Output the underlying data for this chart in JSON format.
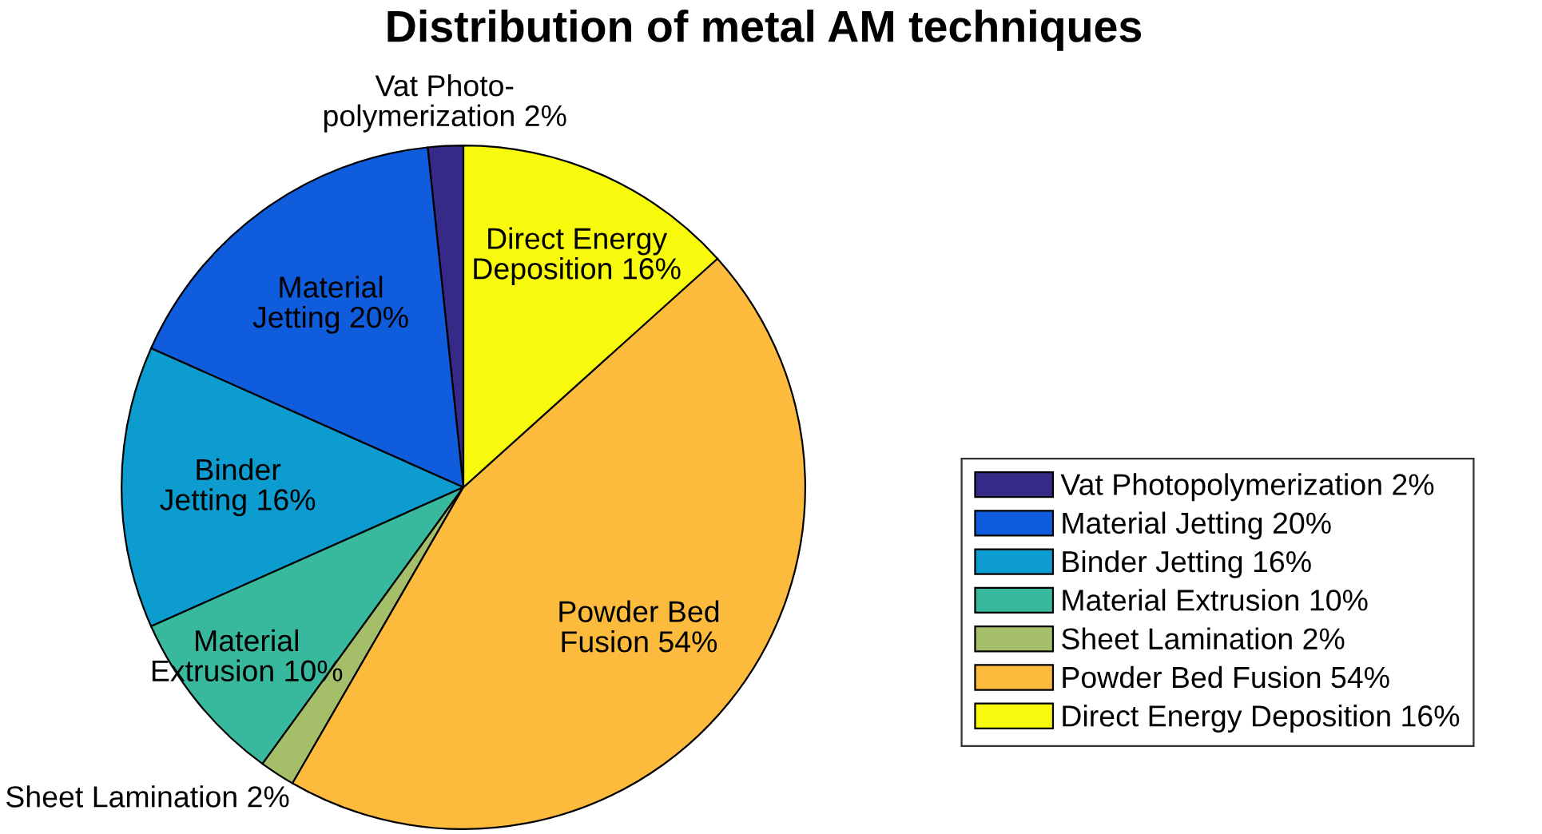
{
  "chart_data": {
    "type": "pie",
    "title": "Distribution of metal AM techniques",
    "categories": [
      "Vat Photopolymerization 2%",
      "Material Jetting 20%",
      "Binder Jetting 16%",
      "Material Extrusion 10%",
      "Sheet Lamination 2%",
      "Powder Bed Fusion 54%",
      "Direct Energy Deposition 16%"
    ],
    "values": [
      2,
      20,
      16,
      10,
      2,
      54,
      16
    ],
    "colors": [
      "#352a87",
      "#0f5cdd",
      "#0d9ccf",
      "#38b99e",
      "#a5be6a",
      "#fdbb3d",
      "#f8fa0d"
    ],
    "value_labels": [
      "Vat Photo-\npolymerization 2%",
      "Material\nJetting 20%",
      "Binder\nJetting 16%",
      "Material\nExtrusion 10%",
      "Sheet Lamination 2%",
      "Powder Bed\nFusion 54%",
      "Direct Energy\nDeposition 16%"
    ],
    "legend": "right"
  }
}
